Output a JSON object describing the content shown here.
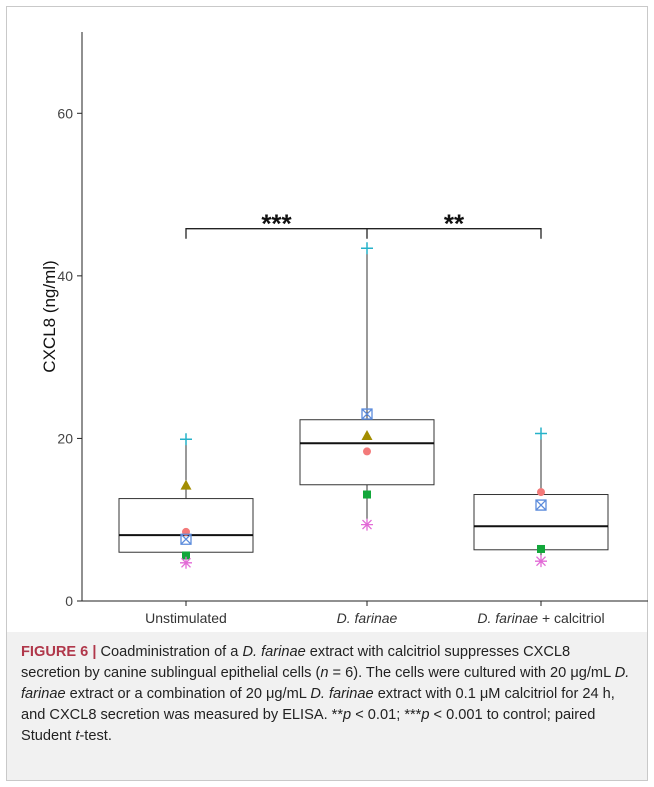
{
  "chart_data": {
    "type": "boxplot",
    "ylabel": "CXCL8 (ng/ml)",
    "ylim": [
      0,
      70
    ],
    "yticks": [
      0,
      20,
      40,
      60
    ],
    "categories": [
      {
        "label_parts": [
          {
            "text": "Unstimulated",
            "italic": false
          }
        ]
      },
      {
        "label_parts": [
          {
            "text": "D. farinae",
            "italic": true
          }
        ]
      },
      {
        "label_parts": [
          {
            "text": "D. farinae",
            "italic": true
          },
          {
            "text": " + calcitriol",
            "italic": false
          }
        ]
      }
    ],
    "boxes": [
      {
        "q1": 6.0,
        "median": 8.1,
        "q3": 12.6,
        "whisker_low": 4.7,
        "whisker_high": 19.9
      },
      {
        "q1": 14.3,
        "median": 19.4,
        "q3": 22.3,
        "whisker_low": 9.4,
        "whisker_high": 43.4
      },
      {
        "q1": 6.3,
        "median": 9.2,
        "q3": 13.1,
        "whisker_low": 4.9,
        "whisker_high": 20.6
      }
    ],
    "series": [
      {
        "marker": "plus",
        "color": "#27b2c9",
        "values": [
          19.9,
          43.4,
          20.6
        ]
      },
      {
        "marker": "triangle",
        "color": "#a38d00",
        "values": [
          14.2,
          20.3,
          null
        ]
      },
      {
        "marker": "circle",
        "color": "#f37a7a",
        "values": [
          8.5,
          18.4,
          13.4
        ]
      },
      {
        "marker": "boxx",
        "color": "#5c8cdc",
        "values": [
          7.6,
          23.0,
          11.8
        ]
      },
      {
        "marker": "square",
        "color": "#12a73a",
        "values": [
          5.6,
          13.1,
          6.4
        ]
      },
      {
        "marker": "asterisk",
        "color": "#e26ad6",
        "values": [
          4.7,
          9.4,
          4.9
        ]
      }
    ],
    "significance": {
      "bracket_y": 45.8,
      "left_label": "***",
      "right_label": "**"
    }
  },
  "caption": {
    "figure_label": "FIGURE 6 |",
    "segments": [
      {
        "text": " Coadministration of a ",
        "italic": false
      },
      {
        "text": "D. farinae",
        "italic": true
      },
      {
        "text": " extract with calcitriol suppresses CXCL8 secretion by canine sublingual epithelial cells (",
        "italic": false
      },
      {
        "text": "n",
        "italic": true
      },
      {
        "text": " = 6). The cells were cultured with 20 μg/mL ",
        "italic": false
      },
      {
        "text": "D. farinae",
        "italic": true
      },
      {
        "text": " extract or a combination of 20 μg/mL ",
        "italic": false
      },
      {
        "text": "D. farinae",
        "italic": true
      },
      {
        "text": " extract with 0.1 μM calcitriol for 24 h, and CXCL8 secretion was measured by ELISA. **",
        "italic": false
      },
      {
        "text": "p",
        "italic": true
      },
      {
        "text": " < 0.01; ***",
        "italic": false
      },
      {
        "text": "p",
        "italic": true
      },
      {
        "text": " < 0.001 to control; paired Student ",
        "italic": false
      },
      {
        "text": "t",
        "italic": true
      },
      {
        "text": "-test.",
        "italic": false
      }
    ]
  }
}
